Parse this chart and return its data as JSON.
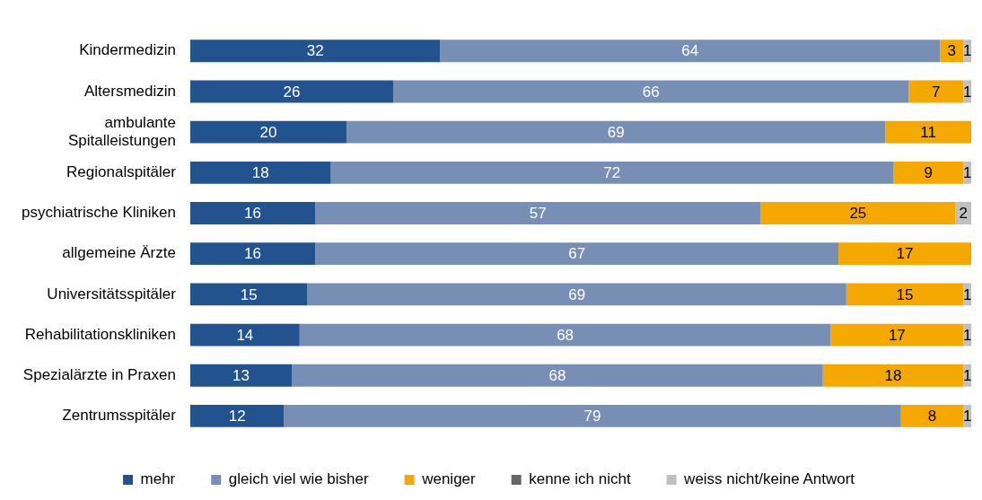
{
  "chart_data": {
    "type": "bar",
    "orientation": "horizontal",
    "stacked": true,
    "data_labels": true,
    "legend": "bottom",
    "grid": false,
    "categories": [
      "Kindermedizin",
      "Altersmedizin",
      "ambulante Spitalleistungen",
      "Regionalspitäler",
      "psychiatrische Kliniken",
      "allgemeine Ärzte",
      "Universitätsspitäler",
      "Rehabilitationskliniken",
      "Spezialärzte in Praxen",
      "Zentrumsspitäler"
    ],
    "series": [
      {
        "name": "mehr",
        "color": "#23538e",
        "values": [
          32,
          26,
          20,
          18,
          16,
          16,
          15,
          14,
          13,
          12
        ]
      },
      {
        "name": "gleich viel wie bisher",
        "color": "#778fb5",
        "values": [
          64,
          66,
          69,
          72,
          57,
          67,
          69,
          68,
          68,
          79
        ]
      },
      {
        "name": "weniger",
        "color": "#f5a800",
        "values": [
          3,
          7,
          11,
          9,
          25,
          17,
          15,
          17,
          18,
          8
        ]
      },
      {
        "name": "kenne ich nicht",
        "color": "#666666",
        "values": [
          null,
          null,
          null,
          null,
          null,
          null,
          null,
          null,
          null,
          null
        ]
      },
      {
        "name": "weiss nicht/keine Antwort",
        "color": "#c0c0c0",
        "values": [
          1,
          1,
          null,
          1,
          2,
          null,
          1,
          1,
          1,
          1
        ]
      }
    ]
  }
}
